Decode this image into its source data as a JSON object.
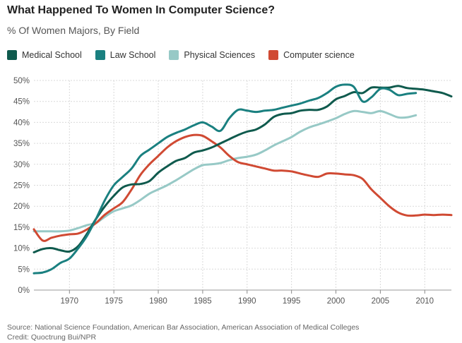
{
  "chart_data": {
    "type": "line",
    "title": "What Happened To Women In Computer Science?",
    "subtitle": "% Of Women Majors, By Field",
    "xlabel": "",
    "ylabel": "",
    "xlim": [
      1966,
      2013
    ],
    "ylim": [
      0,
      50
    ],
    "x_ticks": [
      1970,
      1975,
      1980,
      1985,
      1990,
      1995,
      2000,
      2005,
      2010
    ],
    "y_ticks": [
      0,
      5,
      10,
      15,
      20,
      25,
      30,
      35,
      40,
      45,
      50
    ],
    "y_tick_labels": [
      "0%",
      "5%",
      "10%",
      "15%",
      "20%",
      "25%",
      "30%",
      "35%",
      "40%",
      "45%",
      "50%"
    ],
    "grid": true,
    "series": [
      {
        "name": "Medical School",
        "color": "#0f5a4d",
        "points": [
          [
            1966,
            9
          ],
          [
            1967,
            9.8
          ],
          [
            1968,
            10
          ],
          [
            1969,
            9.5
          ],
          [
            1970,
            9.2
          ],
          [
            1971,
            10.5
          ],
          [
            1972,
            13.5
          ],
          [
            1973,
            17
          ],
          [
            1974,
            20
          ],
          [
            1975,
            22.5
          ],
          [
            1976,
            24.5
          ],
          [
            1977,
            25.2
          ],
          [
            1978,
            25.3
          ],
          [
            1979,
            26
          ],
          [
            1980,
            28
          ],
          [
            1981,
            29.5
          ],
          [
            1982,
            30.8
          ],
          [
            1983,
            31.5
          ],
          [
            1984,
            32.8
          ],
          [
            1985,
            33.3
          ],
          [
            1986,
            34
          ],
          [
            1987,
            35
          ],
          [
            1988,
            36
          ],
          [
            1989,
            37
          ],
          [
            1990,
            37.8
          ],
          [
            1991,
            38.3
          ],
          [
            1992,
            39.5
          ],
          [
            1993,
            41.3
          ],
          [
            1994,
            42
          ],
          [
            1995,
            42.2
          ],
          [
            1996,
            42.8
          ],
          [
            1997,
            43
          ],
          [
            1998,
            43
          ],
          [
            1999,
            43.8
          ],
          [
            2000,
            45.5
          ],
          [
            2001,
            46.3
          ],
          [
            2002,
            47.2
          ],
          [
            2003,
            47
          ],
          [
            2004,
            48.3
          ],
          [
            2005,
            48.3
          ],
          [
            2006,
            48.3
          ],
          [
            2007,
            48.7
          ],
          [
            2008,
            48.2
          ],
          [
            2009,
            48
          ],
          [
            2010,
            47.8
          ],
          [
            2011,
            47.4
          ],
          [
            2012,
            47
          ],
          [
            2013,
            46.2
          ]
        ]
      },
      {
        "name": "Law School",
        "color": "#1a8080",
        "points": [
          [
            1966,
            4
          ],
          [
            1967,
            4.2
          ],
          [
            1968,
            5
          ],
          [
            1969,
            6.5
          ],
          [
            1970,
            7.5
          ],
          [
            1971,
            10
          ],
          [
            1972,
            13
          ],
          [
            1973,
            17
          ],
          [
            1974,
            21.5
          ],
          [
            1975,
            25
          ],
          [
            1976,
            27
          ],
          [
            1977,
            29
          ],
          [
            1978,
            32
          ],
          [
            1979,
            33.5
          ],
          [
            1980,
            35
          ],
          [
            1981,
            36.5
          ],
          [
            1982,
            37.5
          ],
          [
            1983,
            38.3
          ],
          [
            1984,
            39.3
          ],
          [
            1985,
            40
          ],
          [
            1986,
            39
          ],
          [
            1987,
            38
          ],
          [
            1988,
            41
          ],
          [
            1989,
            43
          ],
          [
            1990,
            42.8
          ],
          [
            1991,
            42.5
          ],
          [
            1992,
            42.8
          ],
          [
            1993,
            43
          ],
          [
            1994,
            43.5
          ],
          [
            1995,
            44
          ],
          [
            1996,
            44.5
          ],
          [
            1997,
            45.2
          ],
          [
            1998,
            45.8
          ],
          [
            1999,
            47
          ],
          [
            2000,
            48.5
          ],
          [
            2001,
            49
          ],
          [
            2002,
            48.5
          ],
          [
            2003,
            45
          ],
          [
            2004,
            46
          ],
          [
            2005,
            48
          ],
          [
            2006,
            47.8
          ],
          [
            2007,
            46.5
          ],
          [
            2008,
            46.8
          ],
          [
            2009,
            47
          ]
        ]
      },
      {
        "name": "Physical Sciences",
        "color": "#97c9c6",
        "points": [
          [
            1966,
            14
          ],
          [
            1967,
            14
          ],
          [
            1968,
            14
          ],
          [
            1969,
            14
          ],
          [
            1970,
            14.2
          ],
          [
            1971,
            14.8
          ],
          [
            1972,
            15.5
          ],
          [
            1973,
            16
          ],
          [
            1974,
            17.5
          ],
          [
            1975,
            18.8
          ],
          [
            1976,
            19.5
          ],
          [
            1977,
            20.2
          ],
          [
            1978,
            21.5
          ],
          [
            1979,
            23
          ],
          [
            1980,
            24
          ],
          [
            1981,
            25
          ],
          [
            1982,
            26.2
          ],
          [
            1983,
            27.5
          ],
          [
            1984,
            28.8
          ],
          [
            1985,
            29.8
          ],
          [
            1986,
            30
          ],
          [
            1987,
            30.3
          ],
          [
            1988,
            31
          ],
          [
            1989,
            31.5
          ],
          [
            1990,
            31.8
          ],
          [
            1991,
            32.3
          ],
          [
            1992,
            33.3
          ],
          [
            1993,
            34.5
          ],
          [
            1994,
            35.5
          ],
          [
            1995,
            36.5
          ],
          [
            1996,
            37.8
          ],
          [
            1997,
            38.8
          ],
          [
            1998,
            39.5
          ],
          [
            1999,
            40.2
          ],
          [
            2000,
            41
          ],
          [
            2001,
            42
          ],
          [
            2002,
            42.7
          ],
          [
            2003,
            42.5
          ],
          [
            2004,
            42.2
          ],
          [
            2005,
            42.7
          ],
          [
            2006,
            42
          ],
          [
            2007,
            41.2
          ],
          [
            2008,
            41.2
          ],
          [
            2009,
            41.7
          ]
        ]
      },
      {
        "name": "Computer science",
        "color": "#d04a33",
        "points": [
          [
            1966,
            14.5
          ],
          [
            1967,
            11.8
          ],
          [
            1968,
            12.5
          ],
          [
            1969,
            13
          ],
          [
            1970,
            13.3
          ],
          [
            1971,
            13.5
          ],
          [
            1972,
            14.5
          ],
          [
            1973,
            16
          ],
          [
            1974,
            18
          ],
          [
            1975,
            19.5
          ],
          [
            1976,
            21
          ],
          [
            1977,
            24
          ],
          [
            1978,
            27.5
          ],
          [
            1979,
            30
          ],
          [
            1980,
            32
          ],
          [
            1981,
            34
          ],
          [
            1982,
            35.5
          ],
          [
            1983,
            36.5
          ],
          [
            1984,
            37
          ],
          [
            1985,
            36.8
          ],
          [
            1986,
            35.5
          ],
          [
            1987,
            34
          ],
          [
            1988,
            32
          ],
          [
            1989,
            30.5
          ],
          [
            1990,
            30
          ],
          [
            1991,
            29.5
          ],
          [
            1992,
            29
          ],
          [
            1993,
            28.5
          ],
          [
            1994,
            28.5
          ],
          [
            1995,
            28.3
          ],
          [
            1996,
            27.8
          ],
          [
            1997,
            27.3
          ],
          [
            1998,
            27
          ],
          [
            1999,
            27.8
          ],
          [
            2000,
            27.8
          ],
          [
            2001,
            27.6
          ],
          [
            2002,
            27.4
          ],
          [
            2003,
            26.5
          ],
          [
            2004,
            24
          ],
          [
            2005,
            22
          ],
          [
            2006,
            20
          ],
          [
            2007,
            18.5
          ],
          [
            2008,
            17.8
          ],
          [
            2009,
            17.8
          ],
          [
            2010,
            18
          ],
          [
            2011,
            17.9
          ],
          [
            2012,
            18
          ],
          [
            2013,
            17.9
          ]
        ]
      }
    ]
  },
  "footer": {
    "source": "Source: National Science Foundation, American Bar Association, American Association of Medical Colleges",
    "credit": "Credit: Quoctrung Bui/NPR"
  }
}
